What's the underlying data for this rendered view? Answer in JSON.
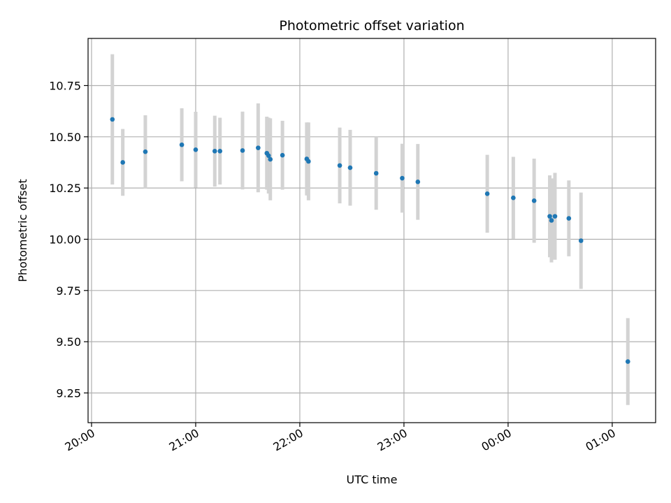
{
  "chart_data": {
    "type": "scatter",
    "title": "Photometric offset variation",
    "xlabel": "UTC time",
    "ylabel": "Photometric offset",
    "grid": true,
    "xlim": [
      "19:58",
      "01:25"
    ],
    "ylim": [
      9.105,
      10.98
    ],
    "x_ticks": [
      {
        "time": "20:00",
        "label": "20:00"
      },
      {
        "time": "21:00",
        "label": "21:00"
      },
      {
        "time": "22:00",
        "label": "22:00"
      },
      {
        "time": "23:00",
        "label": "23:00"
      },
      {
        "time": "00:00",
        "label": "00:00"
      },
      {
        "time": "01:00",
        "label": "01:00"
      }
    ],
    "y_ticks": [
      {
        "value": 9.25,
        "label": "9.25"
      },
      {
        "value": 9.5,
        "label": "9.50"
      },
      {
        "value": 9.75,
        "label": "9.75"
      },
      {
        "value": 10.0,
        "label": "10.00"
      },
      {
        "value": 10.25,
        "label": "10.25"
      },
      {
        "value": 10.5,
        "label": "10.50"
      },
      {
        "value": 10.75,
        "label": "10.75"
      }
    ],
    "colors": {
      "point": "#1f77b4",
      "errorbar": "#d3d3d3",
      "grid": "#b0b0b0"
    },
    "points": [
      {
        "time": "20:12",
        "y": 10.585,
        "err": 0.318
      },
      {
        "time": "20:18",
        "y": 10.375,
        "err": 0.163
      },
      {
        "time": "20:31",
        "y": 10.427,
        "err": 0.178
      },
      {
        "time": "20:52",
        "y": 10.461,
        "err": 0.178
      },
      {
        "time": "21:00",
        "y": 10.437,
        "err": 0.185
      },
      {
        "time": "21:11",
        "y": 10.43,
        "err": 0.173
      },
      {
        "time": "21:14",
        "y": 10.43,
        "err": 0.163
      },
      {
        "time": "21:27",
        "y": 10.433,
        "err": 0.19
      },
      {
        "time": "21:36",
        "y": 10.446,
        "err": 0.217
      },
      {
        "time": "21:41",
        "y": 10.42,
        "err": 0.178
      },
      {
        "time": "21:42",
        "y": 10.408,
        "err": 0.185
      },
      {
        "time": "21:43",
        "y": 10.39,
        "err": 0.2
      },
      {
        "time": "21:50",
        "y": 10.41,
        "err": 0.168
      },
      {
        "time": "22:04",
        "y": 10.392,
        "err": 0.178
      },
      {
        "time": "22:05",
        "y": 10.38,
        "err": 0.19
      },
      {
        "time": "22:23",
        "y": 10.36,
        "err": 0.185
      },
      {
        "time": "22:29",
        "y": 10.349,
        "err": 0.185
      },
      {
        "time": "22:44",
        "y": 10.322,
        "err": 0.178
      },
      {
        "time": "22:59",
        "y": 10.298,
        "err": 0.168
      },
      {
        "time": "23:08",
        "y": 10.28,
        "err": 0.185
      },
      {
        "time": "23:48",
        "y": 10.222,
        "err": 0.19
      },
      {
        "time": "00:03",
        "y": 10.202,
        "err": 0.2
      },
      {
        "time": "00:15",
        "y": 10.188,
        "err": 0.205
      },
      {
        "time": "00:24",
        "y": 10.112,
        "err": 0.2
      },
      {
        "time": "00:25",
        "y": 10.092,
        "err": 0.205
      },
      {
        "time": "00:27",
        "y": 10.112,
        "err": 0.212
      },
      {
        "time": "00:35",
        "y": 10.102,
        "err": 0.185
      },
      {
        "time": "00:42",
        "y": 9.993,
        "err": 0.235
      },
      {
        "time": "01:09",
        "y": 9.403,
        "err": 0.212
      }
    ]
  }
}
